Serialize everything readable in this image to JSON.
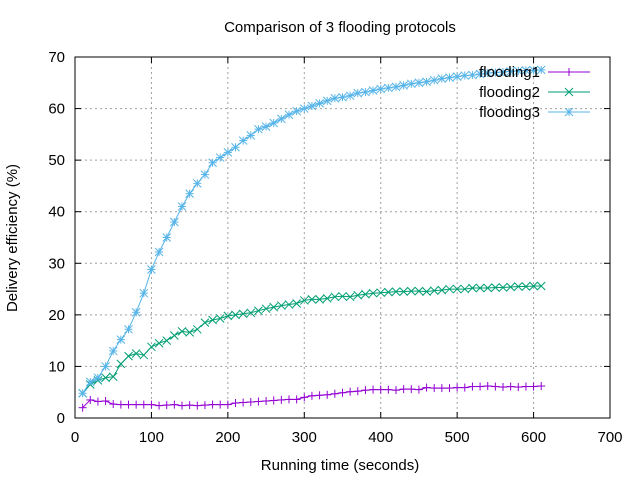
{
  "chart_data": {
    "type": "line",
    "title": "Comparison of 3 flooding protocols",
    "xlabel": "Running time (seconds)",
    "ylabel": "Delivery efficiency (%)",
    "xlim": [
      0,
      700
    ],
    "ylim": [
      0,
      70
    ],
    "xticks": [
      "0",
      "100",
      "200",
      "300",
      "400",
      "500",
      "600",
      "700"
    ],
    "yticks": [
      "0",
      "10",
      "20",
      "30",
      "40",
      "50",
      "60",
      "70"
    ],
    "grid": true,
    "legend_position": "top-right",
    "series": [
      {
        "name": "flooding1",
        "color": "#9400d3",
        "marker": "plus",
        "x": [
          10,
          20,
          30,
          40,
          50,
          60,
          70,
          80,
          90,
          100,
          110,
          120,
          130,
          140,
          150,
          160,
          170,
          180,
          190,
          200,
          210,
          220,
          230,
          240,
          250,
          260,
          270,
          280,
          290,
          300,
          310,
          320,
          330,
          340,
          350,
          360,
          370,
          380,
          390,
          400,
          410,
          420,
          430,
          440,
          450,
          460,
          470,
          480,
          490,
          500,
          510,
          520,
          530,
          540,
          550,
          560,
          570,
          580,
          590,
          600,
          610
        ],
        "y": [
          2.0,
          3.5,
          3.2,
          3.3,
          2.7,
          2.6,
          2.6,
          2.6,
          2.6,
          2.6,
          2.4,
          2.5,
          2.6,
          2.4,
          2.5,
          2.4,
          2.5,
          2.6,
          2.6,
          2.6,
          2.9,
          3.0,
          3.1,
          3.2,
          3.3,
          3.4,
          3.5,
          3.6,
          3.6,
          4.0,
          4.3,
          4.4,
          4.5,
          4.7,
          4.9,
          5.1,
          5.2,
          5.4,
          5.5,
          5.5,
          5.5,
          5.4,
          5.6,
          5.6,
          5.5,
          5.9,
          5.8,
          5.8,
          5.8,
          5.9,
          5.9,
          6.1,
          6.1,
          6.2,
          6.1,
          6.0,
          6.1,
          6.0,
          6.1,
          6.1,
          6.2
        ]
      },
      {
        "name": "flooding2",
        "color": "#009e73",
        "marker": "cross",
        "x": [
          10,
          20,
          30,
          40,
          50,
          60,
          70,
          80,
          90,
          100,
          110,
          120,
          130,
          140,
          150,
          160,
          170,
          180,
          190,
          200,
          210,
          220,
          230,
          240,
          250,
          260,
          270,
          280,
          290,
          300,
          310,
          320,
          330,
          340,
          350,
          360,
          370,
          380,
          390,
          400,
          410,
          420,
          430,
          440,
          450,
          460,
          470,
          480,
          490,
          500,
          510,
          520,
          530,
          540,
          550,
          560,
          570,
          580,
          590,
          600,
          610
        ],
        "y": [
          4.8,
          6.5,
          7.3,
          7.8,
          8.0,
          10.5,
          12.0,
          12.5,
          12.2,
          13.8,
          14.5,
          15.0,
          16.0,
          16.8,
          16.6,
          17.2,
          18.5,
          19.0,
          19.3,
          19.8,
          20.0,
          20.2,
          20.4,
          20.8,
          21.2,
          21.5,
          21.8,
          22.0,
          22.2,
          22.8,
          23.0,
          23.0,
          23.2,
          23.5,
          23.6,
          23.5,
          23.8,
          24.0,
          24.2,
          24.3,
          24.4,
          24.5,
          24.5,
          24.6,
          24.6,
          24.5,
          24.7,
          24.8,
          25.0,
          25.0,
          25.0,
          25.2,
          25.2,
          25.2,
          25.3,
          25.3,
          25.4,
          25.5,
          25.5,
          25.6,
          25.6
        ]
      },
      {
        "name": "flooding3",
        "color": "#56b4e9",
        "marker": "star",
        "x": [
          10,
          20,
          30,
          40,
          50,
          60,
          70,
          80,
          90,
          100,
          110,
          120,
          130,
          140,
          150,
          160,
          170,
          180,
          190,
          200,
          210,
          220,
          230,
          240,
          250,
          260,
          270,
          280,
          290,
          300,
          310,
          320,
          330,
          340,
          350,
          360,
          370,
          380,
          390,
          400,
          410,
          420,
          430,
          440,
          450,
          460,
          470,
          480,
          490,
          500,
          510,
          520,
          530,
          540,
          550,
          560,
          570,
          580,
          590,
          600,
          610
        ],
        "y": [
          4.8,
          7.0,
          7.8,
          10.0,
          13.0,
          15.2,
          17.2,
          20.5,
          24.2,
          28.8,
          32.2,
          35.0,
          38.0,
          41.0,
          43.5,
          45.5,
          47.2,
          49.5,
          50.5,
          51.5,
          52.5,
          53.8,
          54.8,
          56.0,
          56.5,
          57.2,
          58.0,
          58.8,
          59.5,
          60.0,
          60.5,
          61.0,
          61.5,
          62.0,
          62.2,
          62.5,
          63.0,
          63.2,
          63.5,
          63.8,
          64.0,
          64.2,
          64.5,
          64.8,
          65.0,
          65.2,
          65.5,
          65.8,
          66.0,
          66.2,
          66.4,
          66.5,
          66.7,
          66.9,
          67.0,
          67.1,
          67.2,
          67.3,
          67.4,
          67.4,
          67.5
        ]
      }
    ]
  }
}
